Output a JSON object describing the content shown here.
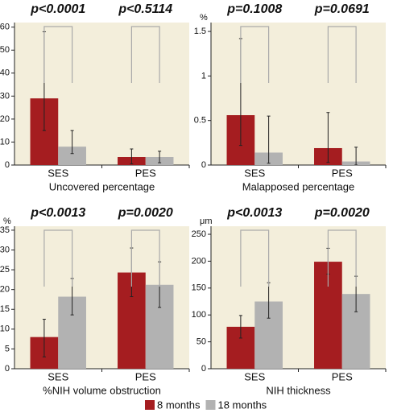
{
  "chart_data": [
    {
      "type": "bar",
      "xlabel": "Uncovered percentage",
      "annotations": [
        "p<0.0001",
        "p<0.5114"
      ],
      "categories": [
        "SES",
        "PES"
      ],
      "series": [
        {
          "name": "8 months",
          "color": "#a51d20",
          "values": [
            29,
            3.5
          ],
          "lower": [
            15,
            0.5
          ],
          "upper": [
            58,
            7
          ]
        },
        {
          "name": "18 months",
          "color": "#b2b2b2",
          "values": [
            8,
            3.5
          ],
          "lower": [
            5,
            1
          ],
          "upper": [
            15,
            6
          ]
        }
      ],
      "ylim": [
        0,
        62
      ],
      "yticks": [
        0,
        10,
        20,
        30,
        40,
        50,
        60
      ]
    },
    {
      "type": "bar",
      "xlabel": "Malapposed percentage",
      "y_unit": "%",
      "annotations": [
        "p=0.1008",
        "p=0.0691"
      ],
      "categories": [
        "SES",
        "PES"
      ],
      "series": [
        {
          "name": "8 months",
          "color": "#a51d20",
          "values": [
            0.56,
            0.19
          ],
          "lower": [
            0.22,
            0.03
          ],
          "upper": [
            1.42,
            0.59
          ]
        },
        {
          "name": "18 months",
          "color": "#b2b2b2",
          "values": [
            0.14,
            0.04
          ],
          "lower": [
            0.02,
            0
          ],
          "upper": [
            0.55,
            0.2
          ]
        }
      ],
      "ylim": [
        0,
        1.6
      ],
      "yticks": [
        0,
        0.5,
        1,
        1.5
      ]
    },
    {
      "type": "bar",
      "xlabel": "%NIH volume obstruction",
      "y_unit": "%",
      "annotations": [
        "p<0.0013",
        "p=0.0020"
      ],
      "categories": [
        "SES",
        "PES"
      ],
      "series": [
        {
          "name": "8 months",
          "color": "#a51d20",
          "values": [
            8,
            24.3
          ],
          "lower": [
            3,
            18.2
          ],
          "upper": [
            12.5,
            30.5
          ]
        },
        {
          "name": "18 months",
          "color": "#b2b2b2",
          "values": [
            18.2,
            21.2
          ],
          "lower": [
            13.6,
            15.5
          ],
          "upper": [
            22.8,
            27
          ]
        }
      ],
      "ylim": [
        0,
        36
      ],
      "yticks": [
        0,
        5,
        10,
        15,
        20,
        25,
        30,
        35
      ]
    },
    {
      "type": "bar",
      "xlabel": "NIH thickness",
      "y_unit": "μm",
      "annotations": [
        "p<0.0013",
        "p=0.0020"
      ],
      "categories": [
        "SES",
        "PES"
      ],
      "series": [
        {
          "name": "8 months",
          "color": "#a51d20",
          "values": [
            78,
            199
          ],
          "lower": [
            57,
            176
          ],
          "upper": [
            99,
            224
          ]
        },
        {
          "name": "18 months",
          "color": "#b2b2b2",
          "values": [
            125,
            139
          ],
          "lower": [
            94,
            106
          ],
          "upper": [
            160,
            172
          ]
        }
      ],
      "ylim": [
        0,
        265
      ],
      "yticks": [
        0,
        50,
        100,
        150,
        200,
        250
      ]
    }
  ]
}
